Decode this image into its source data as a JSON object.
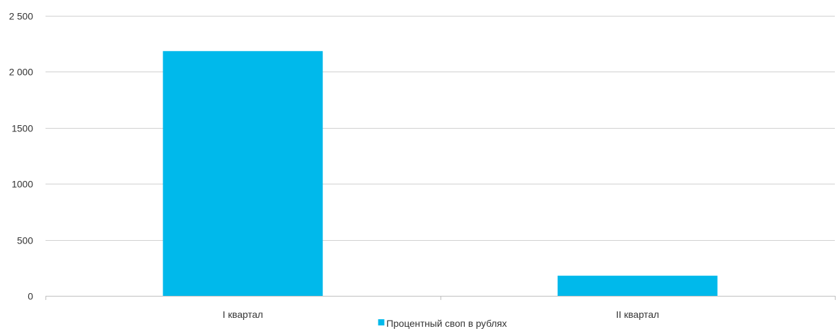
{
  "chart_data": {
    "type": "bar",
    "categories": [
      "I квартал",
      "II квартал"
    ],
    "series": [
      {
        "name": "Процентный своп в рублях",
        "color": "#00b9eb",
        "values": [
          2185,
          180
        ]
      }
    ],
    "yticks": [
      0,
      500,
      1000,
      1500,
      2000,
      2500
    ],
    "ytick_labels": [
      "0",
      "500",
      "1000",
      "1500",
      "2 000",
      "2 500"
    ],
    "ylim": [
      0,
      2500
    ],
    "grid": true,
    "legend_position": "bottom-center"
  }
}
